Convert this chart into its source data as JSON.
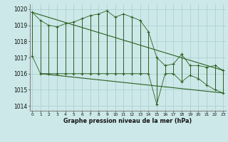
{
  "title": "Graphe pression niveau de la mer (hPa)",
  "background_color": "#cce8e8",
  "grid_color": "#aacccc",
  "line_color": "#2a6020",
  "ylabel_values": [
    1014,
    1015,
    1016,
    1017,
    1018,
    1019,
    1020
  ],
  "x_labels": [
    "0",
    "1",
    "2",
    "3",
    "4",
    "5",
    "6",
    "7",
    "8",
    "9",
    "10",
    "11",
    "12",
    "13",
    "14",
    "15",
    "16",
    "17",
    "18",
    "19",
    "20",
    "21",
    "22",
    "23"
  ],
  "hours": [
    0,
    1,
    2,
    3,
    4,
    5,
    6,
    7,
    8,
    9,
    10,
    11,
    12,
    13,
    14,
    15,
    16,
    17,
    18,
    19,
    20,
    21,
    22,
    23
  ],
  "high_values": [
    1019.8,
    1019.3,
    1019.0,
    1018.9,
    1019.1,
    1019.2,
    1019.4,
    1019.6,
    1019.7,
    1019.9,
    1019.5,
    1019.7,
    1019.5,
    1019.3,
    1018.6,
    1017.0,
    1016.5,
    1016.6,
    1017.2,
    1016.5,
    1016.5,
    1016.4,
    1016.5,
    1016.2
  ],
  "low_values": [
    1017.1,
    1016.0,
    1016.0,
    1016.0,
    1016.0,
    1016.0,
    1016.0,
    1016.0,
    1016.0,
    1016.0,
    1016.0,
    1016.0,
    1016.0,
    1016.0,
    1016.0,
    1014.1,
    1016.0,
    1016.0,
    1015.5,
    1015.9,
    1015.7,
    1015.3,
    1015.0,
    1014.8
  ],
  "trend1_x": [
    0,
    23
  ],
  "trend1_y": [
    1019.8,
    1016.2
  ],
  "trend2_x": [
    1,
    23
  ],
  "trend2_y": [
    1016.0,
    1014.8
  ],
  "ylim": [
    1013.7,
    1020.3
  ],
  "xlim": [
    -0.3,
    23.3
  ],
  "ytick_fontsize": 5.5,
  "xtick_fontsize": 4.2,
  "title_fontsize": 5.8
}
